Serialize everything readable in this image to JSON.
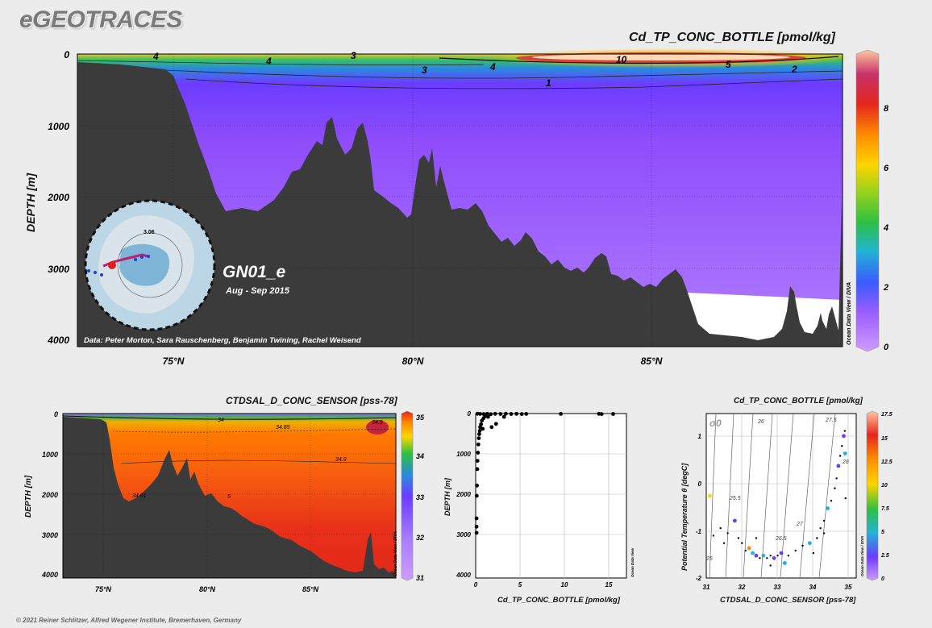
{
  "header": {
    "brand": "eGEOTRACES",
    "copyright": "© 2021 Reiner Schlitzer, Alfred Wegener Institute, Bremerhaven, Germany"
  },
  "section": {
    "name": "GN01_e",
    "dates": "Aug - Sep 2015",
    "credits": "Data: Peter Morton, Sara Rauschenberg, Benjamin Twining, Rachel Weisend",
    "map_label": "3.06",
    "odv_label": "Ocean Data View / DIVA",
    "odv_label_small": "Ocean Data View"
  },
  "chart_data": [
    {
      "type": "heatmap",
      "title": "Cd_TP_CONC_BOTTLE [pmol/kg]",
      "ylabel": "DEPTH [m]",
      "xlabel": "",
      "x_ticks": [
        "75°N",
        "80°N",
        "85°N"
      ],
      "y_ticks": [
        "0",
        "1000",
        "2000",
        "3000",
        "4000"
      ],
      "ylim": [
        4000,
        0
      ],
      "colorbar": {
        "range": [
          0,
          10
        ],
        "ticks": [
          "0",
          "2",
          "4",
          "6",
          "8"
        ]
      },
      "contour_labels": [
        "4",
        "4",
        "3",
        "3",
        "4",
        "10",
        "5",
        "2",
        "1"
      ]
    },
    {
      "type": "heatmap",
      "title": "CTDSAL_D_CONC_SENSOR [pss-78]",
      "ylabel": "DEPTH [m]",
      "xlabel": "",
      "x_ticks": [
        "75°N",
        "80°N",
        "85°N"
      ],
      "y_ticks": [
        "0",
        "1000",
        "2000",
        "3000",
        "4000"
      ],
      "ylim": [
        4000,
        0
      ],
      "colorbar": {
        "range": [
          31,
          35
        ],
        "ticks": [
          "31",
          "32",
          "33",
          "34",
          "35"
        ]
      },
      "contour_labels": [
        "34",
        "34.85",
        "34.9",
        "34.9",
        "34.91",
        "5"
      ]
    },
    {
      "type": "scatter",
      "title": "",
      "xlabel": "Cd_TP_CONC_BOTTLE [pmol/kg]",
      "ylabel": "DEPTH [m]",
      "xlim": [
        0,
        17
      ],
      "ylim": [
        4000,
        0
      ],
      "x_ticks": [
        "0",
        "5",
        "10",
        "15"
      ],
      "y_ticks": [
        "0",
        "1000",
        "2000",
        "3000",
        "4000"
      ],
      "points": [
        {
          "x": 0.2,
          "y": 3
        },
        {
          "x": 0.5,
          "y": 8
        },
        {
          "x": 0.9,
          "y": 12
        },
        {
          "x": 1.3,
          "y": 6
        },
        {
          "x": 1.7,
          "y": 15
        },
        {
          "x": 2.2,
          "y": 5
        },
        {
          "x": 2.8,
          "y": 10
        },
        {
          "x": 3.4,
          "y": 4
        },
        {
          "x": 4.0,
          "y": 9
        },
        {
          "x": 4.6,
          "y": 6
        },
        {
          "x": 5.2,
          "y": 12
        },
        {
          "x": 5.7,
          "y": 7
        },
        {
          "x": 9.6,
          "y": 8
        },
        {
          "x": 13.9,
          "y": 5
        },
        {
          "x": 14.2,
          "y": 12
        },
        {
          "x": 15.5,
          "y": 10
        },
        {
          "x": 1.1,
          "y": 60
        },
        {
          "x": 0.9,
          "y": 110
        },
        {
          "x": 0.7,
          "y": 170
        },
        {
          "x": 1.4,
          "y": 80
        },
        {
          "x": 0.6,
          "y": 260
        },
        {
          "x": 0.5,
          "y": 330
        },
        {
          "x": 0.45,
          "y": 420
        },
        {
          "x": 0.4,
          "y": 500
        },
        {
          "x": 0.35,
          "y": 600
        },
        {
          "x": 0.3,
          "y": 750
        },
        {
          "x": 0.25,
          "y": 950
        },
        {
          "x": 0.2,
          "y": 1150
        },
        {
          "x": 0.18,
          "y": 1350
        },
        {
          "x": 0.15,
          "y": 1750
        },
        {
          "x": 0.12,
          "y": 2000
        },
        {
          "x": 0.1,
          "y": 2550
        },
        {
          "x": 0.1,
          "y": 2750
        },
        {
          "x": 0.1,
          "y": 2900
        },
        {
          "x": 2.3,
          "y": 250
        },
        {
          "x": 1.8,
          "y": 330
        },
        {
          "x": 3.2,
          "y": 80
        },
        {
          "x": 0.8,
          "y": 370
        }
      ]
    },
    {
      "type": "scatter",
      "title": "Cd_TP_CONC_BOTTLE [pmol/kg]",
      "xlabel": "CTDSAL_D_CONC_SENSOR [pss-78]",
      "ylabel": "Potential Temperature θ [degC]",
      "xlim": [
        31,
        35.2
      ],
      "ylim": [
        -2,
        1.3
      ],
      "x_ticks": [
        "31",
        "32",
        "33",
        "34",
        "35"
      ],
      "y_ticks": [
        "1",
        "0",
        "-1",
        "-2"
      ],
      "colorbar": {
        "range": [
          0,
          17.5
        ],
        "ticks": [
          "0",
          "2.5",
          "5",
          "7.5",
          "10",
          "12.5",
          "15",
          "17.5"
        ]
      },
      "isopycnal_label": "σ0",
      "isopycnals": [
        "25",
        "25.5",
        "26",
        "26.5",
        "27",
        "27.5",
        "28"
      ],
      "points": [
        {
          "s": 31.1,
          "t": -0.35,
          "c": 12
        },
        {
          "s": 31.2,
          "t": -1.15,
          "c": 1
        },
        {
          "s": 31.4,
          "t": -1.0,
          "c": 1
        },
        {
          "s": 31.6,
          "t": -1.1,
          "c": 1
        },
        {
          "s": 31.8,
          "t": -0.85,
          "c": 4
        },
        {
          "s": 31.9,
          "t": -1.2,
          "c": 1
        },
        {
          "s": 32.0,
          "t": -1.3,
          "c": 2
        },
        {
          "s": 32.1,
          "t": -1.45,
          "c": 1
        },
        {
          "s": 32.2,
          "t": -1.4,
          "c": 13
        },
        {
          "s": 32.3,
          "t": -1.5,
          "c": 5
        },
        {
          "s": 32.4,
          "t": -1.55,
          "c": 3
        },
        {
          "s": 32.5,
          "t": -1.6,
          "c": 1
        },
        {
          "s": 32.6,
          "t": -1.55,
          "c": 6
        },
        {
          "s": 32.7,
          "t": -1.6,
          "c": 2
        },
        {
          "s": 32.8,
          "t": -1.55,
          "c": 1
        },
        {
          "s": 32.9,
          "t": -1.6,
          "c": 3
        },
        {
          "s": 33.0,
          "t": -1.55,
          "c": 1
        },
        {
          "s": 33.1,
          "t": -1.5,
          "c": 4
        },
        {
          "s": 33.3,
          "t": -1.55,
          "c": 1
        },
        {
          "s": 33.5,
          "t": -1.45,
          "c": 2
        },
        {
          "s": 33.7,
          "t": -1.35,
          "c": 1
        },
        {
          "s": 33.9,
          "t": -1.3,
          "c": 5
        },
        {
          "s": 34.1,
          "t": -1.2,
          "c": 2
        },
        {
          "s": 34.2,
          "t": -1.0,
          "c": 1
        },
        {
          "s": 34.3,
          "t": -0.85,
          "c": 1
        },
        {
          "s": 34.4,
          "t": -0.6,
          "c": 6
        },
        {
          "s": 34.5,
          "t": -0.45,
          "c": 1
        },
        {
          "s": 34.6,
          "t": -0.2,
          "c": 2
        },
        {
          "s": 34.65,
          "t": 0.0,
          "c": 1
        },
        {
          "s": 34.7,
          "t": 0.25,
          "c": 3
        },
        {
          "s": 34.75,
          "t": 0.45,
          "c": 1
        },
        {
          "s": 34.8,
          "t": 0.65,
          "c": 2
        },
        {
          "s": 34.85,
          "t": 0.85,
          "c": 4
        },
        {
          "s": 34.88,
          "t": 0.95,
          "c": 1
        },
        {
          "s": 34.9,
          "t": -0.4,
          "c": 0.5
        },
        {
          "s": 32.8,
          "t": -1.75,
          "c": 1
        },
        {
          "s": 33.2,
          "t": -1.7,
          "c": 7
        },
        {
          "s": 34.0,
          "t": -1.5,
          "c": 1
        },
        {
          "s": 32.4,
          "t": -1.2,
          "c": 1
        },
        {
          "s": 31.5,
          "t": -1.3,
          "c": 1
        },
        {
          "s": 34.3,
          "t": -1.1,
          "c": 1
        },
        {
          "s": 34.89,
          "t": 0.5,
          "c": 6
        }
      ]
    }
  ]
}
